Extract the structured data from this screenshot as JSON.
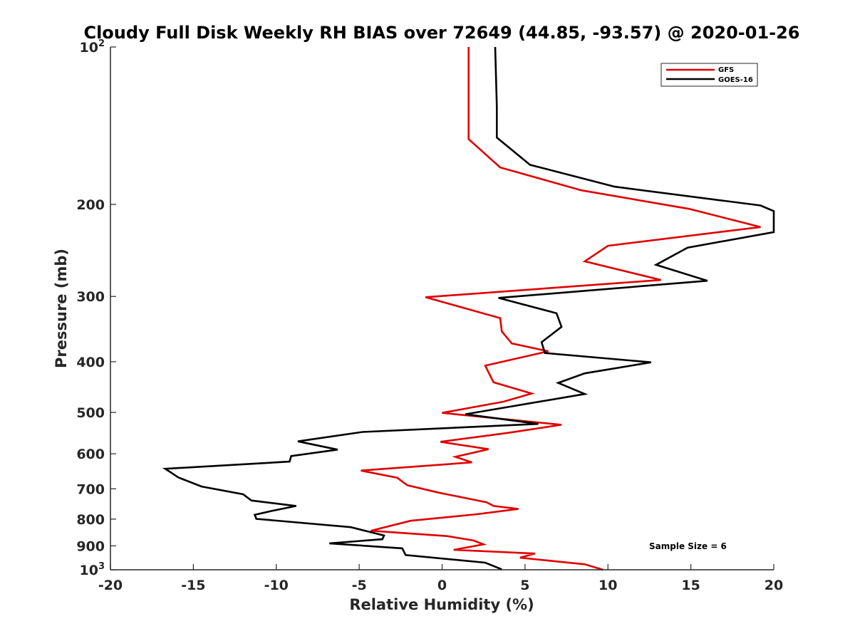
{
  "chart_data": {
    "type": "line",
    "title": "Cloudy Full Disk Weekly RH BIAS over 72649 (44.85, -93.57) @ 2020-01-26",
    "xlabel": "Relative Humidity (%)",
    "ylabel": "Pressure (mb)",
    "xlim": [
      -20,
      20
    ],
    "ylim": [
      100,
      1000
    ],
    "y_scale": "log",
    "y_reversed": true,
    "grid": false,
    "legend_placement": "top-right",
    "x_ticks": [
      "-20",
      "-15",
      "-10",
      "-5",
      "0",
      "5",
      "10",
      "15",
      "20"
    ],
    "y_ticks": [
      {
        "value": 100,
        "base": "10",
        "exp": "2"
      },
      {
        "value": 200,
        "label": "200"
      },
      {
        "value": 300,
        "label": "300"
      },
      {
        "value": 400,
        "label": "400"
      },
      {
        "value": 500,
        "label": "500"
      },
      {
        "value": 600,
        "label": "600"
      },
      {
        "value": 700,
        "label": "700"
      },
      {
        "value": 800,
        "label": "800"
      },
      {
        "value": 900,
        "label": "900"
      },
      {
        "value": 1000,
        "base": "10",
        "exp": "3"
      }
    ],
    "annotation": "Sample Size = 6",
    "series": [
      {
        "name": "GFS",
        "color": "#e00000",
        "points": [
          [
            1.6,
            100
          ],
          [
            1.6,
            150
          ],
          [
            3.5,
            170
          ],
          [
            8.4,
            188
          ],
          [
            14.9,
            204
          ],
          [
            19.2,
            221
          ],
          [
            10.0,
            240
          ],
          [
            8.6,
            257
          ],
          [
            13.2,
            279
          ],
          [
            -1.0,
            301
          ],
          [
            3.5,
            330
          ],
          [
            3.6,
            350
          ],
          [
            4.2,
            369
          ],
          [
            6.4,
            382
          ],
          [
            2.6,
            407
          ],
          [
            3.1,
            438
          ],
          [
            5.4,
            460
          ],
          [
            3.7,
            477
          ],
          [
            0.0,
            501
          ],
          [
            7.2,
            528
          ],
          [
            4.0,
            547
          ],
          [
            -0.1,
            569
          ],
          [
            2.8,
            588
          ],
          [
            0.8,
            608
          ],
          [
            1.8,
            623
          ],
          [
            -4.9,
            646
          ],
          [
            -2.7,
            667
          ],
          [
            -2.1,
            689
          ],
          [
            -0.2,
            712
          ],
          [
            2.7,
            743
          ],
          [
            3.1,
            755
          ],
          [
            4.6,
            765
          ],
          [
            2.1,
            783
          ],
          [
            -1.9,
            806
          ],
          [
            -4.3,
            842
          ],
          [
            0.3,
            862
          ],
          [
            1.9,
            879
          ],
          [
            2.5,
            894
          ],
          [
            0.7,
            916
          ],
          [
            5.6,
            931
          ],
          [
            4.7,
            948
          ],
          [
            8.6,
            976
          ],
          [
            9.7,
            1000
          ]
        ]
      },
      {
        "name": "GOES-16",
        "color": "#000000",
        "points": [
          [
            3.2,
            100
          ],
          [
            3.3,
            130
          ],
          [
            3.3,
            149
          ],
          [
            5.3,
            168
          ],
          [
            10.4,
            185
          ],
          [
            19.2,
            201
          ],
          [
            20.0,
            206
          ],
          [
            20.0,
            226
          ],
          [
            14.8,
            242
          ],
          [
            12.9,
            261
          ],
          [
            16.0,
            280
          ],
          [
            3.4,
            302
          ],
          [
            6.9,
            323
          ],
          [
            7.2,
            343
          ],
          [
            6.0,
            367
          ],
          [
            6.2,
            385
          ],
          [
            12.6,
            401
          ],
          [
            8.6,
            421
          ],
          [
            7.0,
            439
          ],
          [
            8.6,
            461
          ],
          [
            1.4,
            504
          ],
          [
            5.8,
            526
          ],
          [
            -4.8,
            545
          ],
          [
            -8.7,
            568
          ],
          [
            -6.3,
            589
          ],
          [
            -9.1,
            606
          ],
          [
            -9.2,
            621
          ],
          [
            -16.7,
            641
          ],
          [
            -16.4,
            650
          ],
          [
            -15.9,
            666
          ],
          [
            -14.5,
            693
          ],
          [
            -12.0,
            717
          ],
          [
            -11.5,
            737
          ],
          [
            -8.8,
            755
          ],
          [
            -10.3,
            772
          ],
          [
            -11.3,
            785
          ],
          [
            -11.2,
            799
          ],
          [
            -5.5,
            829
          ],
          [
            -3.5,
            860
          ],
          [
            -3.6,
            874
          ],
          [
            -6.8,
            890
          ],
          [
            -2.4,
            910
          ],
          [
            -2.2,
            937
          ],
          [
            2.6,
            969
          ],
          [
            3.6,
            998
          ]
        ]
      }
    ]
  }
}
